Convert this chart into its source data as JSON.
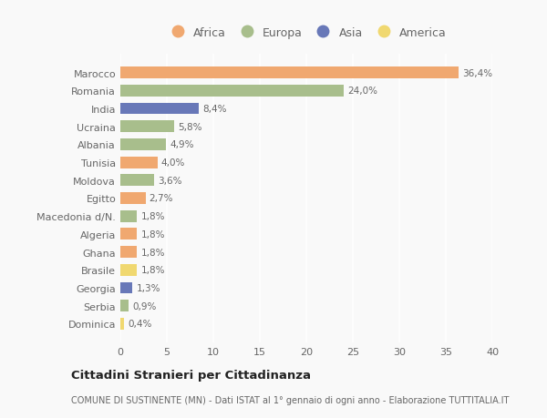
{
  "categories": [
    "Marocco",
    "Romania",
    "India",
    "Ucraina",
    "Albania",
    "Tunisia",
    "Moldova",
    "Egitto",
    "Macedonia d/N.",
    "Algeria",
    "Ghana",
    "Brasile",
    "Georgia",
    "Serbia",
    "Dominica"
  ],
  "values": [
    36.4,
    24.0,
    8.4,
    5.8,
    4.9,
    4.0,
    3.6,
    2.7,
    1.8,
    1.8,
    1.8,
    1.8,
    1.3,
    0.9,
    0.4
  ],
  "labels": [
    "36,4%",
    "24,0%",
    "8,4%",
    "5,8%",
    "4,9%",
    "4,0%",
    "3,6%",
    "2,7%",
    "1,8%",
    "1,8%",
    "1,8%",
    "1,8%",
    "1,3%",
    "0,9%",
    "0,4%"
  ],
  "colors": [
    "#F0A870",
    "#A8BE8C",
    "#6878B8",
    "#A8BE8C",
    "#A8BE8C",
    "#F0A870",
    "#A8BE8C",
    "#F0A870",
    "#A8BE8C",
    "#F0A870",
    "#F0A870",
    "#F0D870",
    "#6878B8",
    "#A8BE8C",
    "#F0D870"
  ],
  "legend_labels": [
    "Africa",
    "Europa",
    "Asia",
    "America"
  ],
  "legend_colors": [
    "#F0A870",
    "#A8BE8C",
    "#6878B8",
    "#F0D870"
  ],
  "title": "Cittadini Stranieri per Cittadinanza",
  "subtitle": "COMUNE DI SUSTINENTE (MN) - Dati ISTAT al 1° gennaio di ogni anno - Elaborazione TUTTITALIA.IT",
  "xlim": [
    0,
    40
  ],
  "xticks": [
    0,
    5,
    10,
    15,
    20,
    25,
    30,
    35,
    40
  ],
  "background_color": "#f9f9f9",
  "grid_color": "#e8e8e8",
  "bar_height": 0.65
}
